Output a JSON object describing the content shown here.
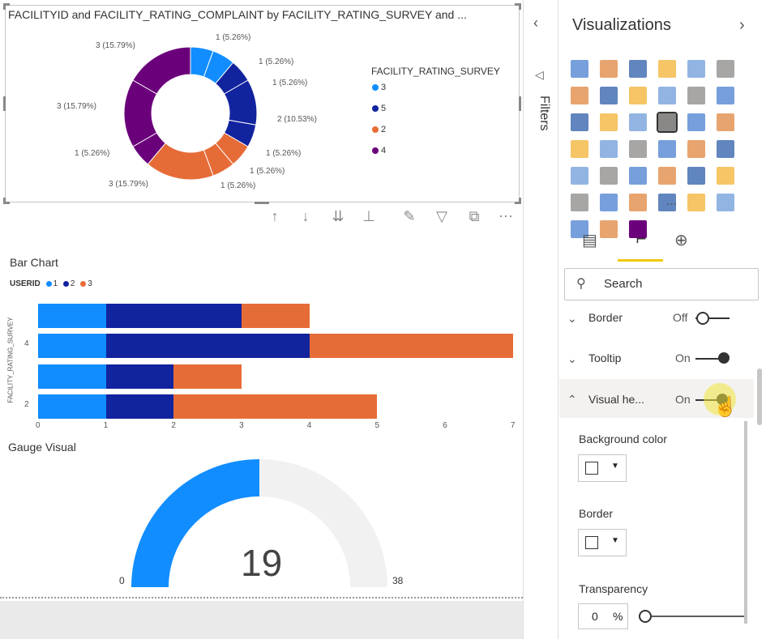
{
  "donut": {
    "title": "FACILITYID and FACILITY_RATING_COMPLAINT by FACILITY_RATING_SURVEY and ...",
    "labels": [
      "1 (5.26%)",
      "1 (5.26%)",
      "1 (5.26%)",
      "2 (10.53%)",
      "1 (5.26%)",
      "1 (5.26%)",
      "1 (5.26%)",
      "3 (15.79%)",
      "1 (5.26%)",
      "3 (15.79%)",
      "3 (15.79%)"
    ],
    "legend_title": "FACILITY_RATING_SURVEY",
    "legend": [
      {
        "label": "3",
        "color": "#118dff"
      },
      {
        "label": "5",
        "color": "#12239e"
      },
      {
        "label": "2",
        "color": "#e66c37"
      },
      {
        "label": "4",
        "color": "#6b007b"
      }
    ]
  },
  "bar_chart": {
    "title": "Bar Chart",
    "legend_title": "USERID",
    "legend": [
      {
        "label": "1",
        "color": "#118dff"
      },
      {
        "label": "2",
        "color": "#12239e"
      },
      {
        "label": "3",
        "color": "#e66c37"
      }
    ],
    "ylabel": "FACILITY_RATING_SURVEY",
    "ytick_labels": [
      "4",
      "2"
    ],
    "xtick_labels": [
      "0",
      "1",
      "2",
      "3",
      "4",
      "5",
      "6",
      "7"
    ]
  },
  "chart_data": {
    "type": "bar",
    "orientation": "horizontal",
    "stacked": true,
    "categories": [
      "",
      "4",
      "",
      "2"
    ],
    "series": [
      {
        "name": "1",
        "values": [
          1,
          1,
          1,
          1
        ]
      },
      {
        "name": "2",
        "values": [
          2,
          3,
          1,
          1
        ]
      },
      {
        "name": "3",
        "values": [
          1,
          3,
          1,
          3
        ]
      }
    ],
    "xlim": [
      0,
      7
    ]
  },
  "gauge": {
    "title": "Gauge Visual",
    "value": "19",
    "min": "0",
    "max": "38",
    "fraction": 0.5
  },
  "filters": {
    "label": "Filters"
  },
  "viz_pane": {
    "title": "Visualizations",
    "search_placeholder": "Search",
    "rows": [
      {
        "label": "Border",
        "state": "Off"
      },
      {
        "label": "Tooltip",
        "state": "On"
      },
      {
        "label": "Visual he...",
        "state": "On"
      }
    ],
    "background_color_label": "Background color",
    "border_label": "Border",
    "transparency_label": "Transparency",
    "transparency_value": "0",
    "transparency_unit": "%",
    "more_label": "..."
  }
}
